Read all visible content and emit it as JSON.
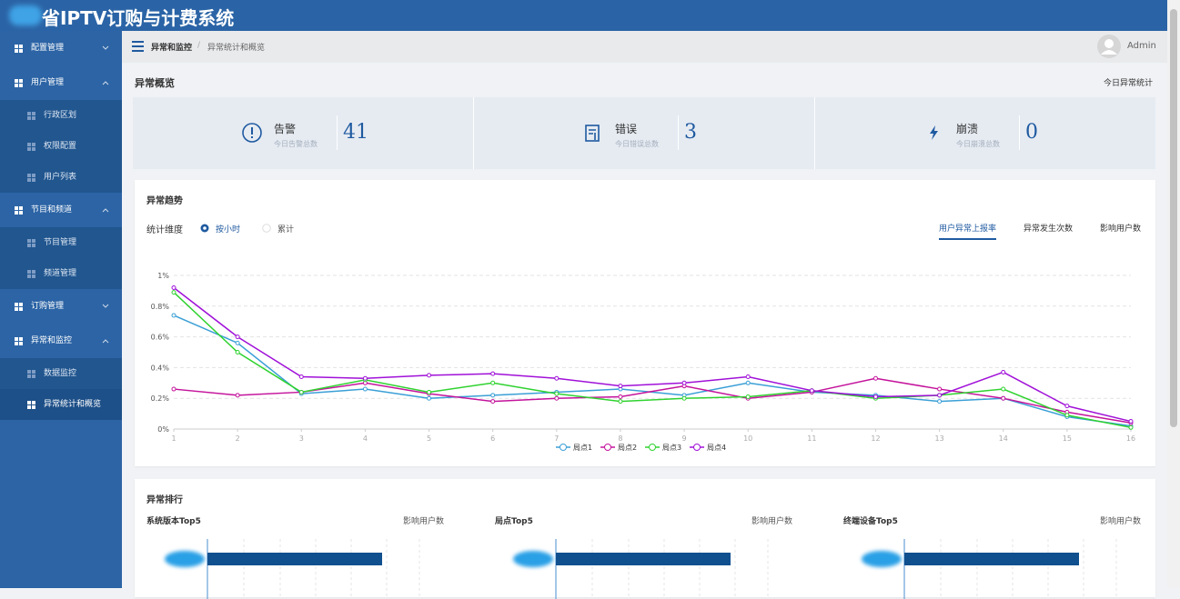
{
  "header": {
    "title": "省IPTV订购与计费系统"
  },
  "menu": [
    {
      "label": "配置管理"
    },
    {
      "label": "用户管理",
      "children": [
        "行政区划",
        "权限配置",
        "用户列表"
      ]
    },
    {
      "label": "节目和频道",
      "children": [
        "节目管理",
        "频道管理"
      ]
    },
    {
      "label": "订购管理"
    },
    {
      "label": "异常和监控",
      "children": [
        "数据监控",
        "异常统计和概览"
      ]
    }
  ],
  "breadcrumb": [
    "异常和监控",
    "异常统计和概览"
  ],
  "user": "Admin",
  "overview": {
    "title": "异常概览",
    "link": "今日异常统计",
    "stats": [
      {
        "label": "告警",
        "sublabel": "今日告警总数",
        "value": 41
      },
      {
        "label": "错误",
        "sublabel": "今日错误总数",
        "value": 3
      },
      {
        "label": "崩溃",
        "sublabel": "今日崩溃总数",
        "value": 0
      }
    ]
  },
  "trend": {
    "title": "异常趋势",
    "dimension_label": "统计维度",
    "options": [
      "按小时",
      "累计"
    ],
    "tabs": [
      "用户异常上报率",
      "异常发生次数",
      "影响用户数"
    ]
  },
  "chart_data": {
    "type": "line",
    "x": [
      1,
      2,
      3,
      4,
      5,
      6,
      7,
      8,
      9,
      10,
      11,
      12,
      13,
      14,
      15,
      16
    ],
    "xlim": [
      1,
      16
    ],
    "xticks": [
      1,
      2,
      3,
      4,
      5,
      6,
      7,
      8,
      9,
      10,
      11,
      12,
      13,
      14,
      15,
      16
    ],
    "ylim": [
      0,
      1
    ],
    "yticks": [
      {
        "value": 0,
        "label": "0%"
      },
      {
        "value": 0.2,
        "label": "0.2%"
      },
      {
        "value": 0.4,
        "label": "0.4%"
      },
      {
        "value": 0.6,
        "label": "0.6%"
      },
      {
        "value": 0.8,
        "label": "0.8%"
      },
      {
        "value": 1,
        "label": "1%"
      }
    ],
    "grid": true,
    "series": [
      {
        "name": "局点1",
        "color": "#3a9fd6",
        "values": [
          0.74,
          0.56,
          0.23,
          0.26,
          0.2,
          0.22,
          0.24,
          0.26,
          0.22,
          0.3,
          0.24,
          0.22,
          0.18,
          0.2,
          0.08,
          0.02
        ]
      },
      {
        "name": "局点2",
        "color": "#c4139c",
        "values": [
          0.26,
          0.22,
          0.24,
          0.3,
          0.23,
          0.18,
          0.2,
          0.21,
          0.28,
          0.2,
          0.24,
          0.33,
          0.26,
          0.2,
          0.11,
          0.04
        ]
      },
      {
        "name": "局点3",
        "color": "#2fd22f",
        "values": [
          0.89,
          0.5,
          0.24,
          0.32,
          0.24,
          0.3,
          0.23,
          0.18,
          0.2,
          0.21,
          0.25,
          0.2,
          0.22,
          0.26,
          0.09,
          0.01
        ]
      },
      {
        "name": "局点4",
        "color": "#a010d8",
        "values": [
          0.92,
          0.6,
          0.34,
          0.33,
          0.35,
          0.36,
          0.33,
          0.28,
          0.3,
          0.34,
          0.25,
          0.21,
          0.22,
          0.37,
          0.15,
          0.05
        ]
      }
    ]
  },
  "ranking": {
    "title": "异常排行",
    "panels": [
      {
        "title": "系统版本Top5",
        "metric": "影响用户数"
      },
      {
        "title": "局点Top5",
        "metric": "影响用户数"
      },
      {
        "title": "终端设备Top5",
        "metric": "影响用户数"
      }
    ]
  }
}
